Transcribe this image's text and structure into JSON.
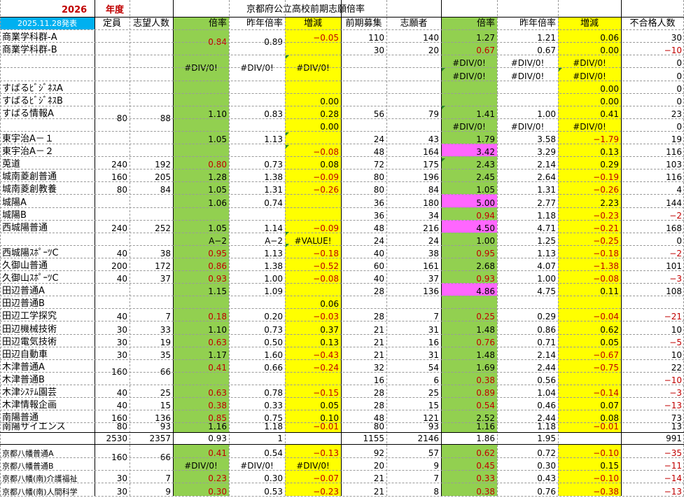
{
  "header": {
    "year": "2026",
    "nendo": "年度",
    "title": "京都府公立高校前期志願倍率",
    "date_label": "2025.11.28発表",
    "cols": [
      "定員",
      "志望人数",
      "倍率",
      "昨年倍率",
      "増減",
      "前期募集",
      "志願者",
      "倍率",
      "昨年倍率",
      "増減",
      "不合格人数"
    ]
  },
  "rows": [
    {
      "name": "商業学科群-A",
      "c4": "0.84",
      "c5": "0.89",
      "c6": "−0.05",
      "c7": "110",
      "c8": "140",
      "c9": "1.27",
      "c10": "1.21",
      "c11": "0.06",
      "c12": "30"
    },
    {
      "name": "商業学科群-B",
      "c2": "200",
      "c3": "168",
      "c7": "30",
      "c8": "20",
      "c9": "0.67",
      "c10": "0.67",
      "c11": "0.00",
      "c12": "−10"
    },
    {
      "c4": "#DIV/0!",
      "c5": "#DIV/0!",
      "c6": "#DIV/0!",
      "c9": "#DIV/0!",
      "c10": "#DIV/0!",
      "c11": "#DIV/0!",
      "c12": "0"
    },
    {
      "c9": "#DIV/0!",
      "c10": "#DIV/0!",
      "c11": "#DIV/0!",
      "c12": "0"
    },
    {
      "name": "すばるﾋﾞｼﾞﾈｽA",
      "c11": "0.00",
      "c12": "0"
    },
    {
      "name": "すばるﾋﾞｼﾞﾈｽB",
      "c6": "0.00",
      "c11": "0.00",
      "c12": "0"
    },
    {
      "name": "すばる情報A",
      "c2": "80",
      "c3": "88",
      "c4": "1.10",
      "c5": "0.83",
      "c6": "0.28",
      "c7": "56",
      "c8": "79",
      "c9": "1.41",
      "c10": "1.00",
      "c11": "0.41",
      "c12": "23"
    },
    {
      "c6": "0.00",
      "c9": "#DIV/0!",
      "c10": "#DIV/0!",
      "c11": "#DIV/0!",
      "c12": "0"
    },
    {
      "name": "東宇治A－１",
      "c4": "1.05",
      "c5": "1.13",
      "c7": "24",
      "c8": "43",
      "c9": "1.79",
      "c10": "3.58",
      "c11": "−1.79",
      "c12": "19"
    },
    {
      "name": "東宇治A－２",
      "c2": "240",
      "c3": "253",
      "c6": "−0.08",
      "c7": "48",
      "c8": "164",
      "c9": "3.42",
      "c10": "3.29",
      "c11": "0.13",
      "c12": "116"
    },
    {
      "name": "莵道",
      "c2": "240",
      "c3": "192",
      "c4": "0.80",
      "c5": "0.73",
      "c6": "0.08",
      "c7": "72",
      "c8": "175",
      "c9": "2.43",
      "c10": "2.14",
      "c11": "0.29",
      "c12": "103"
    },
    {
      "name": "城南菱創普通",
      "c2": "160",
      "c3": "205",
      "c4": "1.28",
      "c5": "1.38",
      "c6": "−0.09",
      "c7": "80",
      "c8": "196",
      "c9": "2.45",
      "c10": "2.64",
      "c11": "−0.19",
      "c12": "116"
    },
    {
      "name": "城南菱創教養",
      "c2": "80",
      "c3": "84",
      "c4": "1.05",
      "c5": "1.31",
      "c6": "−0.26",
      "c7": "80",
      "c8": "84",
      "c9": "1.05",
      "c10": "1.31",
      "c11": "−0.26",
      "c12": "4"
    },
    {
      "name": "城陽A",
      "c4": "1.06",
      "c5": "0.74",
      "c7": "36",
      "c8": "180",
      "c9": "5.00",
      "c10": "2.77",
      "c11": "2.23",
      "c12": "144"
    },
    {
      "name": "城陽B",
      "c2": "240",
      "c3": "255",
      "c6": "0.32",
      "c7": "36",
      "c8": "34",
      "c9": "0.94",
      "c10": "1.18",
      "c11": "−0.23",
      "c12": "−2"
    },
    {
      "name": "西城陽普通",
      "c2": "240",
      "c3": "252",
      "c4": "1.05",
      "c5": "1.14",
      "c6": "−0.09",
      "c7": "48",
      "c8": "216",
      "c9": "4.50",
      "c10": "4.71",
      "c11": "−0.21",
      "c12": "168"
    },
    {
      "c4": "A−2",
      "c5": "A−2",
      "c6": "#VALUE!",
      "c7": "24",
      "c8": "24",
      "c9": "1.00",
      "c10": "1.25",
      "c11": "−0.25",
      "c12": "0"
    },
    {
      "name": "西城陽ｽﾎﾟｰﾂC",
      "c2": "40",
      "c3": "38",
      "c4": "0.95",
      "c5": "1.13",
      "c6": "−0.18",
      "c7": "40",
      "c8": "38",
      "c9": "0.95",
      "c10": "1.13",
      "c11": "−0.18",
      "c12": "−2"
    },
    {
      "name": "久御山普通",
      "c2": "200",
      "c3": "172",
      "c4": "0.86",
      "c5": "1.38",
      "c6": "−0.52",
      "c7": "60",
      "c8": "161",
      "c9": "2.68",
      "c10": "4.07",
      "c11": "−1.38",
      "c12": "101"
    },
    {
      "name": "久御山ｽﾎﾟｰﾂC",
      "c2": "40",
      "c3": "37",
      "c4": "0.93",
      "c5": "1.00",
      "c6": "−0.08",
      "c7": "40",
      "c8": "37",
      "c9": "0.93",
      "c10": "1.00",
      "c11": "−0.08",
      "c12": "−3"
    },
    {
      "name": "田辺普通A",
      "c4": "1.15",
      "c5": "1.09",
      "c7": "28",
      "c8": "136",
      "c9": "4.86",
      "c10": "4.75",
      "c11": "0.11",
      "c12": "108"
    },
    {
      "name": "田辺普通B",
      "c2": "160",
      "c3": "184",
      "c6": "0.06",
      "c7": "",
      "c8": "",
      "c9": "",
      "c10": "",
      "c11": "",
      "c12": ""
    },
    {
      "name": "田辺工学探究",
      "c2": "40",
      "c3": "7",
      "c4": "0.18",
      "c5": "0.20",
      "c6": "−0.03",
      "c7": "28",
      "c8": "7",
      "c9": "0.25",
      "c10": "0.29",
      "c11": "−0.04",
      "c12": "−21"
    },
    {
      "name": "田辺機械技術",
      "c2": "30",
      "c3": "33",
      "c4": "1.10",
      "c5": "0.73",
      "c6": "0.37",
      "c7": "21",
      "c8": "31",
      "c9": "1.48",
      "c10": "0.86",
      "c11": "0.62",
      "c12": "10"
    },
    {
      "name": "田辺電気技術",
      "c2": "30",
      "c3": "19",
      "c4": "0.63",
      "c5": "0.50",
      "c6": "0.13",
      "c7": "21",
      "c8": "16",
      "c9": "0.76",
      "c10": "0.71",
      "c11": "0.05",
      "c12": "−5"
    },
    {
      "name": "田辺自動車",
      "c2": "30",
      "c3": "35",
      "c4": "1.17",
      "c5": "1.60",
      "c6": "−0.43",
      "c7": "21",
      "c8": "31",
      "c9": "1.48",
      "c10": "2.14",
      "c11": "−0.67",
      "c12": "10"
    },
    {
      "name": "木津普通A",
      "c2": "160",
      "c3": "66",
      "c4": "0.41",
      "c5": "0.66",
      "c6": "−0.24",
      "c7": "32",
      "c8": "54",
      "c9": "1.69",
      "c10": "2.44",
      "c11": "−0.75",
      "c12": "22"
    },
    {
      "name": "木津普通B",
      "c7": "16",
      "c8": "6",
      "c9": "0.38",
      "c10": "0.56",
      "c11": "",
      "c12": "−10"
    },
    {
      "name": "木津ｼｽﾃﾑ園芸",
      "c2": "40",
      "c3": "25",
      "c4": "0.63",
      "c5": "0.78",
      "c6": "−0.15",
      "c7": "28",
      "c8": "25",
      "c9": "0.89",
      "c10": "1.04",
      "c11": "−0.14",
      "c12": "−3"
    },
    {
      "name": "木津情報企画",
      "c2": "40",
      "c3": "15",
      "c4": "0.38",
      "c5": "0.33",
      "c6": "0.05",
      "c7": "28",
      "c8": "15",
      "c9": "0.54",
      "c10": "0.46",
      "c11": "0.07",
      "c12": "−13"
    },
    {
      "name": "南陽普通",
      "c2": "160",
      "c3": "136",
      "c4": "0.85",
      "c5": "0.75",
      "c6": "0.10",
      "c7": "48",
      "c8": "121",
      "c9": "2.52",
      "c10": "2.44",
      "c11": "0.08",
      "c12": "73"
    },
    {
      "name": "南陽サイエンス",
      "c2": "80",
      "c3": "93",
      "c4": "1.16",
      "c5": "1.18",
      "c6": "−0.01",
      "c7": "80",
      "c8": "93",
      "c9": "1.16",
      "c10": "1.18",
      "c11": "−0.01",
      "c12": "13"
    }
  ],
  "totals": {
    "c2": "2530",
    "c3": "2357",
    "c4": "0.93",
    "c5": "1",
    "c7": "1155",
    "c8": "2146",
    "c9": "1.86",
    "c10": "1.95",
    "c12": "991"
  },
  "bottom_rows": [
    {
      "name": "京都八幡普通A",
      "c4": "0.41",
      "c5": "0.54",
      "c6": "−0.13",
      "c7": "92",
      "c8": "57",
      "c9": "0.62",
      "c10": "0.72",
      "c11": "−0.10",
      "c12": "−35"
    },
    {
      "name": "京都八幡普通B",
      "c2": "160",
      "c3": "66",
      "c4": "#DIV/0!",
      "c5": "#DIV/0!",
      "c6": "#DIV/0!",
      "c7": "20",
      "c8": "9",
      "c9": "0.45",
      "c10": "0.30",
      "c11": "0.15",
      "c12": "−11"
    },
    {
      "name": "京都八幡(南)介護福祉",
      "c2": "30",
      "c3": "7",
      "c4": "0.23",
      "c5": "0.30",
      "c6": "−0.07",
      "c7": "21",
      "c8": "7",
      "c9": "0.33",
      "c10": "0.43",
      "c11": "−0.10",
      "c12": "−14"
    },
    {
      "name": "京都八幡(南)人間科学",
      "c2": "30",
      "c3": "9",
      "c4": "0.30",
      "c5": "0.53",
      "c6": "−0.23",
      "c7": "21",
      "c8": "8",
      "c9": "0.38",
      "c10": "0.76",
      "c11": "−0.38",
      "c12": "−13"
    }
  ]
}
